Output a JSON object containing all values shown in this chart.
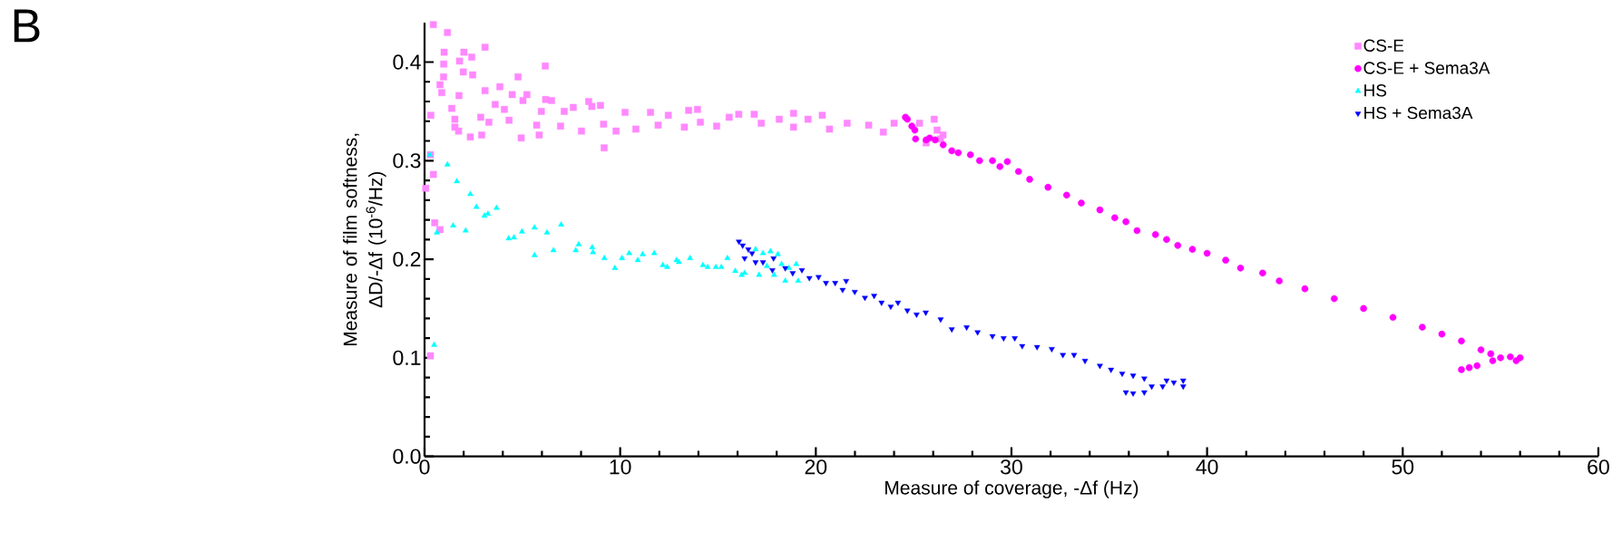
{
  "chart_data": {
    "type": "scatter",
    "xlabel": "Measure of coverage, -Δf (Hz)",
    "ylabel": "Measure of film softness, ΔD/-Δf (10$^{-6}$/Hz)",
    "annotations": [
      "B"
    ],
    "xlim": [
      0,
      60
    ],
    "ylim": [
      0,
      0.44
    ],
    "xticks": [
      0,
      10,
      20,
      30,
      40,
      50,
      60
    ],
    "yticks": [
      {
        "value": 0,
        "label": "0.0"
      },
      {
        "value": 0.1,
        "label": "0.1"
      },
      {
        "value": 0.2,
        "label": "0.2"
      },
      {
        "value": 0.3,
        "label": "0.3"
      },
      {
        "value": 0.4,
        "label": "0.4"
      }
    ],
    "legend": "top right",
    "series": [
      {
        "name": "CS-E",
        "color": "#ff88ff",
        "marker": "square",
        "x": [
          0.45,
          1.17,
          1.0,
          2.01,
          3.09,
          1.79,
          2.41,
          0.98,
          6.17,
          1.98,
          2.46,
          0.97,
          4.78,
          0.79,
          3.85,
          0.88,
          1.76,
          3.09,
          4.48,
          5.23,
          3.61,
          6.19,
          6.49,
          1.39,
          4.08,
          5.03,
          5.97,
          0.32,
          1.55,
          2.87,
          3.29,
          4.32,
          4.94,
          2.34,
          2.92,
          1.55,
          1.74,
          5.73,
          5.86,
          6.95,
          7.14,
          7.6,
          8.39,
          8.55,
          8.02,
          8.99,
          9.18,
          9.15,
          9.79,
          10.25,
          10.8,
          11.55,
          11.94,
          12.46,
          13.28,
          13.5,
          13.95,
          14.1,
          14.93,
          15.57,
          16.06,
          16.85,
          17.21,
          18.13,
          18.86,
          18.86,
          19.6,
          20.33,
          20.7,
          21.6,
          22.7,
          23.45,
          24.0,
          25.3,
          26.2,
          26.37,
          25.64,
          26.5,
          26.05,
          0.3,
          0.45,
          0.06,
          0.52,
          0.79,
          0.3
        ],
        "values": [
          0.438,
          0.43,
          0.41,
          0.41,
          0.415,
          0.401,
          0.405,
          0.398,
          0.396,
          0.39,
          0.387,
          0.385,
          0.385,
          0.377,
          0.375,
          0.369,
          0.366,
          0.371,
          0.367,
          0.367,
          0.357,
          0.362,
          0.361,
          0.353,
          0.352,
          0.361,
          0.35,
          0.346,
          0.342,
          0.344,
          0.339,
          0.341,
          0.323,
          0.324,
          0.326,
          0.334,
          0.33,
          0.336,
          0.326,
          0.335,
          0.35,
          0.354,
          0.36,
          0.355,
          0.33,
          0.356,
          0.313,
          0.337,
          0.33,
          0.349,
          0.332,
          0.349,
          0.336,
          0.346,
          0.334,
          0.351,
          0.352,
          0.339,
          0.335,
          0.344,
          0.347,
          0.347,
          0.338,
          0.342,
          0.348,
          0.334,
          0.342,
          0.346,
          0.332,
          0.338,
          0.336,
          0.329,
          0.338,
          0.338,
          0.331,
          0.322,
          0.318,
          0.326,
          0.342,
          0.306,
          0.286,
          0.272,
          0.237,
          0.23,
          0.102
        ]
      },
      {
        "name": "CS-E + Sema3A",
        "color": "#ff00ff",
        "marker": "circle",
        "x": [
          24.58,
          24.91,
          25.1,
          25.64,
          26.1,
          26.51,
          27.28,
          24.68,
          25.06,
          25.82,
          26.95,
          27.9,
          28.37,
          29.03,
          29.41,
          29.79,
          30.36,
          30.93,
          31.87,
          32.82,
          33.57,
          34.52,
          35.28,
          35.85,
          36.42,
          37.36,
          37.93,
          38.5,
          39.25,
          40.0,
          40.95,
          41.71,
          42.84,
          43.69,
          45,
          46.5,
          48,
          49.5,
          51,
          52,
          53,
          54,
          54.5,
          55,
          55.5,
          56,
          55.8,
          54.6,
          53.8,
          53.4,
          53
        ],
        "values": [
          0.344,
          0.335,
          0.322,
          0.321,
          0.321,
          0.316,
          0.308,
          0.342,
          0.331,
          0.323,
          0.31,
          0.306,
          0.3,
          0.3,
          0.294,
          0.299,
          0.289,
          0.281,
          0.273,
          0.265,
          0.257,
          0.25,
          0.242,
          0.238,
          0.229,
          0.225,
          0.22,
          0.214,
          0.21,
          0.206,
          0.199,
          0.191,
          0.186,
          0.178,
          0.17,
          0.16,
          0.15,
          0.141,
          0.131,
          0.124,
          0.117,
          0.108,
          0.104,
          0.1,
          0.101,
          0.1,
          0.097,
          0.097,
          0.092,
          0.09,
          0.088
        ]
      },
      {
        "name": "HS",
        "color": "#00ffff",
        "marker": "triangle",
        "x": [
          0.27,
          1.17,
          1.65,
          2.34,
          2.65,
          3.06,
          3.24,
          3.68,
          1.46,
          2.1,
          4.3,
          4.57,
          4.98,
          5.62,
          5.62,
          6.26,
          6.59,
          6.98,
          7.73,
          7.88,
          8.57,
          8.61,
          9.19,
          9.73,
          10.09,
          10.46,
          10.9,
          11.15,
          11.74,
          12.18,
          12.4,
          12.88,
          13.0,
          13.57,
          14.23,
          14.47,
          14.89,
          15.17,
          15.48,
          16.21,
          0.49,
          0.63,
          15.88,
          16.36,
          16.92,
          17.3,
          17.68,
          18.06,
          17.1,
          17.87,
          18.44,
          19.0,
          19.1,
          18.63,
          18.25,
          17.5
        ],
        "values": [
          0.306,
          0.296,
          0.279,
          0.266,
          0.253,
          0.244,
          0.246,
          0.252,
          0.234,
          0.229,
          0.221,
          0.222,
          0.228,
          0.232,
          0.204,
          0.227,
          0.209,
          0.235,
          0.209,
          0.215,
          0.212,
          0.207,
          0.201,
          0.191,
          0.201,
          0.206,
          0.199,
          0.205,
          0.206,
          0.194,
          0.192,
          0.199,
          0.197,
          0.201,
          0.194,
          0.192,
          0.192,
          0.192,
          0.201,
          0.184,
          0.113,
          0.227,
          0.188,
          0.186,
          0.21,
          0.206,
          0.208,
          0.205,
          0.184,
          0.184,
          0.178,
          0.195,
          0.178,
          0.191,
          0.195,
          0.193
        ]
      },
      {
        "name": "HS + Sema3A",
        "color": "#0000ff",
        "marker": "triangle-down",
        "x": [
          16.07,
          16.26,
          16.55,
          16.36,
          16.74,
          16.92,
          17.3,
          17.84,
          17.78,
          18.44,
          18.82,
          19.29,
          19.67,
          20.14,
          20.52,
          20.99,
          21.37,
          21.55,
          21.99,
          22.51,
          22.98,
          23.36,
          23.83,
          24.2,
          24.68,
          25.15,
          25.62,
          26.38,
          26.95,
          27.71,
          28.27,
          29.03,
          29.6,
          30.17,
          30.55,
          31.31,
          32.06,
          32.63,
          33.2,
          33.76,
          34.52,
          35.09,
          35.66,
          36.22,
          36.79,
          35.85,
          36.22,
          36.79,
          37.17,
          37.73,
          38.3,
          38.78,
          38.78,
          37.93
        ],
        "values": [
          0.218,
          0.214,
          0.21,
          0.201,
          0.206,
          0.197,
          0.197,
          0.201,
          0.189,
          0.191,
          0.186,
          0.189,
          0.181,
          0.182,
          0.176,
          0.176,
          0.169,
          0.178,
          0.167,
          0.161,
          0.163,
          0.156,
          0.152,
          0.156,
          0.148,
          0.144,
          0.146,
          0.139,
          0.129,
          0.131,
          0.126,
          0.122,
          0.12,
          0.12,
          0.112,
          0.111,
          0.109,
          0.103,
          0.103,
          0.097,
          0.092,
          0.088,
          0.084,
          0.082,
          0.079,
          0.065,
          0.064,
          0.065,
          0.071,
          0.071,
          0.075,
          0.077,
          0.071,
          0.077
        ]
      }
    ]
  }
}
